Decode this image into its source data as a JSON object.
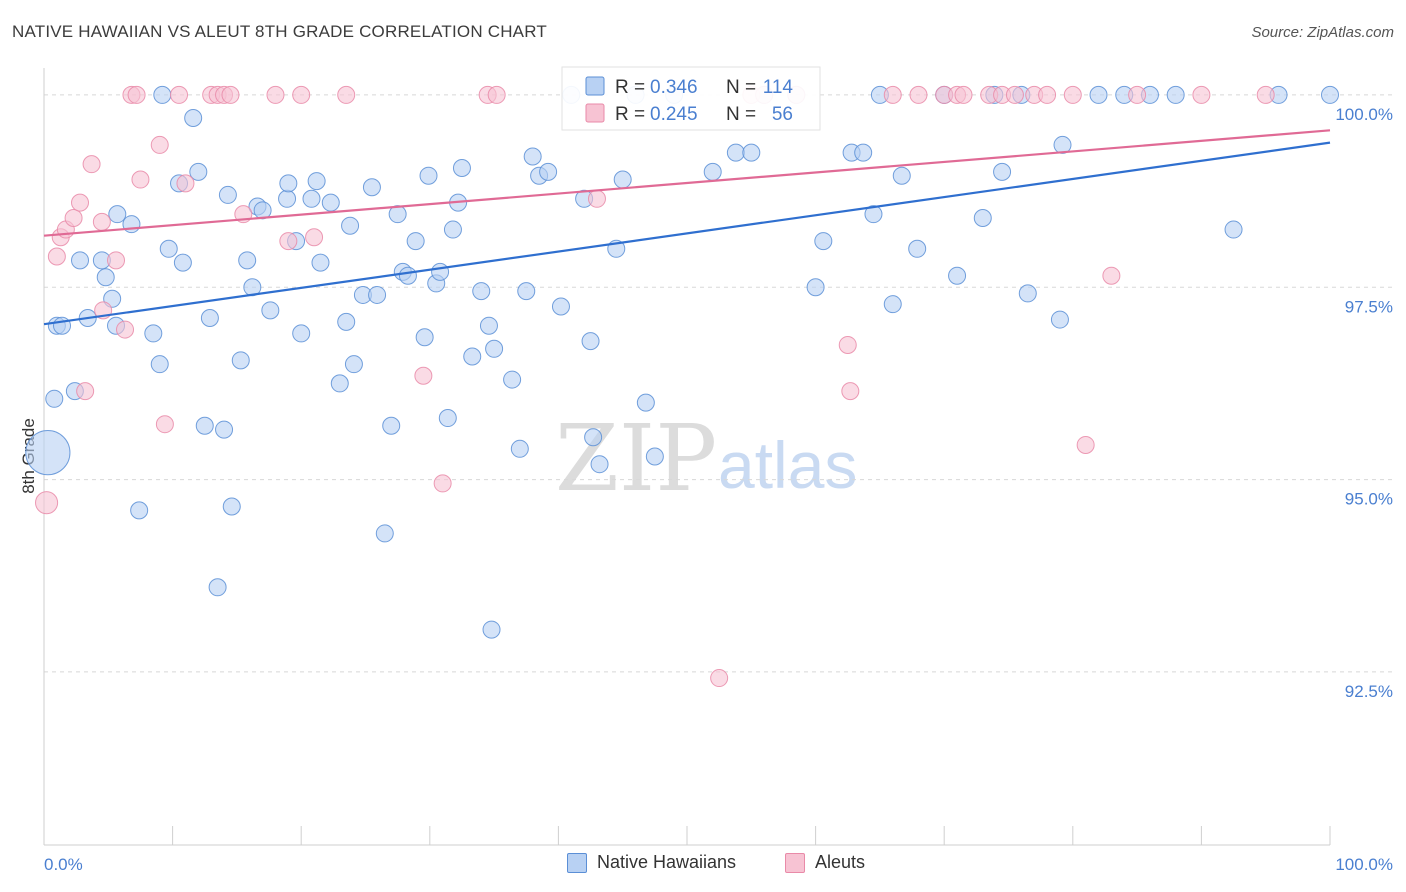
{
  "header": {
    "title": "NATIVE HAWAIIAN VS ALEUT 8TH GRADE CORRELATION CHART",
    "source": "Source: ZipAtlas.com"
  },
  "colors": {
    "blue": "#5b8fd6",
    "blue_fill": "#b8d1f3",
    "blue_line": "#2f6fcf",
    "pink": "#e98aa8",
    "pink_fill": "#f7c3d3",
    "pink_line": "#e06a95",
    "tick_label": "#4a7fd0",
    "grid": "#d8d8d8"
  },
  "chart_data": {
    "type": "scatter",
    "title": "NATIVE HAWAIIAN VS ALEUT 8TH GRADE CORRELATION CHART",
    "xlabel": "",
    "ylabel": "8th Grade",
    "xlim": [
      0,
      100
    ],
    "ylim": [
      90.25,
      100.35
    ],
    "y_ticks": [
      100.0,
      97.5,
      95.0,
      92.5
    ],
    "y_tick_labels": [
      "100.0%",
      "97.5%",
      "95.0%",
      "92.5%"
    ],
    "x_tick_labels": [
      "0.0%",
      "100.0%"
    ],
    "watermark": {
      "zip": "ZIP",
      "atlas": "atlas"
    },
    "legend_stats": [
      {
        "r_label": "R = ",
        "r_value": "0.346",
        "n_label": "N = ",
        "n_value": "114"
      },
      {
        "r_label": "R = ",
        "r_value": "0.245",
        "n_label": "N = ",
        "n_value": "56"
      }
    ],
    "series": [
      {
        "name": "Native Hawaiians",
        "trend": {
          "x": [
            0,
            100
          ],
          "y": [
            97.02,
            99.38
          ]
        },
        "points": [
          [
            0.3,
            95.35,
            2.6
          ],
          [
            1.0,
            97.0,
            1
          ],
          [
            1.4,
            97.0,
            1
          ],
          [
            0.8,
            96.05,
            1
          ],
          [
            2.4,
            96.15,
            1
          ],
          [
            2.8,
            97.85,
            1
          ],
          [
            4.5,
            97.85,
            1
          ],
          [
            3.4,
            97.1,
            1
          ],
          [
            4.8,
            97.63,
            1
          ],
          [
            5.3,
            97.35,
            1
          ],
          [
            5.6,
            97.0,
            1
          ],
          [
            5.7,
            98.45,
            1
          ],
          [
            6.8,
            98.32,
            1
          ],
          [
            7.4,
            94.6,
            1
          ],
          [
            8.5,
            96.9,
            1
          ],
          [
            9.0,
            96.5,
            1
          ],
          [
            9.2,
            100.0,
            1
          ],
          [
            9.7,
            98.0,
            1
          ],
          [
            10.5,
            98.85,
            1
          ],
          [
            10.8,
            97.82,
            1
          ],
          [
            11.6,
            99.7,
            1
          ],
          [
            12.0,
            99.0,
            1
          ],
          [
            12.5,
            95.7,
            1
          ],
          [
            12.9,
            97.1,
            1
          ],
          [
            13.5,
            93.6,
            1
          ],
          [
            14.0,
            95.65,
            1
          ],
          [
            14.3,
            98.7,
            1
          ],
          [
            14.6,
            94.65,
            1
          ],
          [
            15.3,
            96.55,
            1
          ],
          [
            15.8,
            97.85,
            1
          ],
          [
            16.2,
            97.5,
            1
          ],
          [
            16.6,
            98.55,
            1
          ],
          [
            17.0,
            98.5,
            1
          ],
          [
            17.6,
            97.2,
            1
          ],
          [
            18.9,
            98.65,
            1
          ],
          [
            19.0,
            98.85,
            1
          ],
          [
            19.6,
            98.1,
            1
          ],
          [
            20.0,
            96.9,
            1
          ],
          [
            20.8,
            98.65,
            1
          ],
          [
            21.2,
            98.88,
            1
          ],
          [
            21.5,
            97.82,
            1
          ],
          [
            22.3,
            98.6,
            1
          ],
          [
            23.0,
            96.25,
            1
          ],
          [
            23.5,
            97.05,
            1
          ],
          [
            23.8,
            98.3,
            1
          ],
          [
            24.1,
            96.5,
            1
          ],
          [
            24.8,
            97.4,
            1
          ],
          [
            25.5,
            98.8,
            1
          ],
          [
            25.9,
            97.4,
            1
          ],
          [
            26.5,
            94.3,
            1
          ],
          [
            27.0,
            95.7,
            1
          ],
          [
            27.5,
            98.45,
            1
          ],
          [
            27.9,
            97.7,
            1
          ],
          [
            28.3,
            97.65,
            1
          ],
          [
            28.9,
            98.1,
            1
          ],
          [
            29.6,
            96.85,
            1
          ],
          [
            29.9,
            98.95,
            1
          ],
          [
            30.5,
            97.55,
            1
          ],
          [
            30.8,
            97.7,
            1
          ],
          [
            31.4,
            95.8,
            1
          ],
          [
            31.8,
            98.25,
            1
          ],
          [
            32.2,
            98.6,
            1
          ],
          [
            32.5,
            99.05,
            1
          ],
          [
            33.3,
            96.6,
            1
          ],
          [
            34.0,
            97.45,
            1
          ],
          [
            34.6,
            97.0,
            1
          ],
          [
            34.8,
            93.05,
            1
          ],
          [
            35.0,
            96.7,
            1
          ],
          [
            36.4,
            96.3,
            1
          ],
          [
            37.0,
            95.4,
            1
          ],
          [
            37.5,
            97.45,
            1
          ],
          [
            38.0,
            99.2,
            1
          ],
          [
            38.5,
            98.95,
            1
          ],
          [
            39.2,
            99.0,
            1
          ],
          [
            40.2,
            97.25,
            1
          ],
          [
            41.0,
            100.0,
            1
          ],
          [
            42.0,
            98.65,
            1
          ],
          [
            42.5,
            96.8,
            1
          ],
          [
            42.7,
            95.55,
            1
          ],
          [
            43.2,
            95.2,
            1
          ],
          [
            44.5,
            98.0,
            1
          ],
          [
            45.0,
            98.9,
            1
          ],
          [
            46.0,
            100.0,
            1
          ],
          [
            46.8,
            96.0,
            1
          ],
          [
            47.5,
            95.3,
            1
          ],
          [
            49.0,
            100.0,
            1
          ],
          [
            52.0,
            99.0,
            1
          ],
          [
            53.8,
            99.25,
            1
          ],
          [
            55.0,
            99.25,
            1
          ],
          [
            56.0,
            100.0,
            1
          ],
          [
            58.5,
            100.0,
            1
          ],
          [
            60.0,
            97.5,
            1
          ],
          [
            60.6,
            98.1,
            1
          ],
          [
            62.8,
            99.25,
            1
          ],
          [
            63.7,
            99.25,
            1
          ],
          [
            64.5,
            98.45,
            1
          ],
          [
            65.0,
            100.0,
            1
          ],
          [
            66.0,
            97.28,
            1
          ],
          [
            66.7,
            98.95,
            1
          ],
          [
            67.9,
            98.0,
            1
          ],
          [
            70.0,
            100.0,
            1
          ],
          [
            71.0,
            97.65,
            1
          ],
          [
            73.0,
            98.4,
            1
          ],
          [
            73.9,
            100.0,
            1
          ],
          [
            74.5,
            99.0,
            1
          ],
          [
            76.0,
            100.0,
            1
          ],
          [
            76.5,
            97.42,
            1
          ],
          [
            79.0,
            97.08,
            1
          ],
          [
            79.2,
            99.35,
            1
          ],
          [
            82.0,
            100.0,
            1
          ],
          [
            84.0,
            100.0,
            1
          ],
          [
            86.0,
            100.0,
            1
          ],
          [
            88.0,
            100.0,
            1
          ],
          [
            92.5,
            98.25,
            1
          ],
          [
            96.0,
            100.0,
            1
          ],
          [
            100.0,
            100.0,
            1
          ]
        ]
      },
      {
        "name": "Aleuts",
        "trend": {
          "x": [
            0,
            100
          ],
          "y": [
            98.17,
            99.54
          ]
        },
        "points": [
          [
            0.2,
            94.7,
            1.3
          ],
          [
            1.0,
            97.9,
            1
          ],
          [
            1.3,
            98.15,
            1
          ],
          [
            1.7,
            98.25,
            1
          ],
          [
            2.3,
            98.4,
            1
          ],
          [
            2.8,
            98.6,
            1
          ],
          [
            3.2,
            96.15,
            1
          ],
          [
            3.7,
            99.1,
            1
          ],
          [
            4.5,
            98.35,
            1
          ],
          [
            4.6,
            97.2,
            1
          ],
          [
            5.6,
            97.85,
            1
          ],
          [
            6.3,
            96.95,
            1
          ],
          [
            6.8,
            100.0,
            1
          ],
          [
            7.2,
            100.0,
            1
          ],
          [
            7.5,
            98.9,
            1
          ],
          [
            9.0,
            99.35,
            1
          ],
          [
            9.4,
            95.72,
            1
          ],
          [
            10.5,
            100.0,
            1
          ],
          [
            11.0,
            98.85,
            1
          ],
          [
            13.0,
            100.0,
            1
          ],
          [
            13.5,
            100.0,
            1
          ],
          [
            14.0,
            100.0,
            1
          ],
          [
            14.5,
            100.0,
            1
          ],
          [
            15.5,
            98.45,
            1
          ],
          [
            18.0,
            100.0,
            1
          ],
          [
            19.0,
            98.1,
            1
          ],
          [
            20.0,
            100.0,
            1
          ],
          [
            21.0,
            98.15,
            1
          ],
          [
            23.5,
            100.0,
            1
          ],
          [
            29.5,
            96.35,
            1
          ],
          [
            31.0,
            94.95,
            1
          ],
          [
            34.5,
            100.0,
            1
          ],
          [
            35.2,
            100.0,
            1
          ],
          [
            43.0,
            98.65,
            1
          ],
          [
            52.5,
            92.42,
            1
          ],
          [
            55.0,
            100.0,
            1
          ],
          [
            56.0,
            100.0,
            1
          ],
          [
            58.5,
            100.0,
            1
          ],
          [
            62.5,
            96.75,
            1
          ],
          [
            62.7,
            96.15,
            1
          ],
          [
            66.0,
            100.0,
            1
          ],
          [
            68.0,
            100.0,
            1
          ],
          [
            70.0,
            100.0,
            1
          ],
          [
            71.0,
            100.0,
            1
          ],
          [
            71.5,
            100.0,
            1
          ],
          [
            73.5,
            100.0,
            1
          ],
          [
            74.5,
            100.0,
            1
          ],
          [
            75.5,
            100.0,
            1
          ],
          [
            77.0,
            100.0,
            1
          ],
          [
            78.0,
            100.0,
            1
          ],
          [
            80.0,
            100.0,
            1
          ],
          [
            81.0,
            95.45,
            1
          ],
          [
            83.0,
            97.65,
            1
          ],
          [
            85.0,
            100.0,
            1
          ],
          [
            90.0,
            100.0,
            1
          ],
          [
            95.0,
            100.0,
            1
          ]
        ]
      }
    ]
  }
}
